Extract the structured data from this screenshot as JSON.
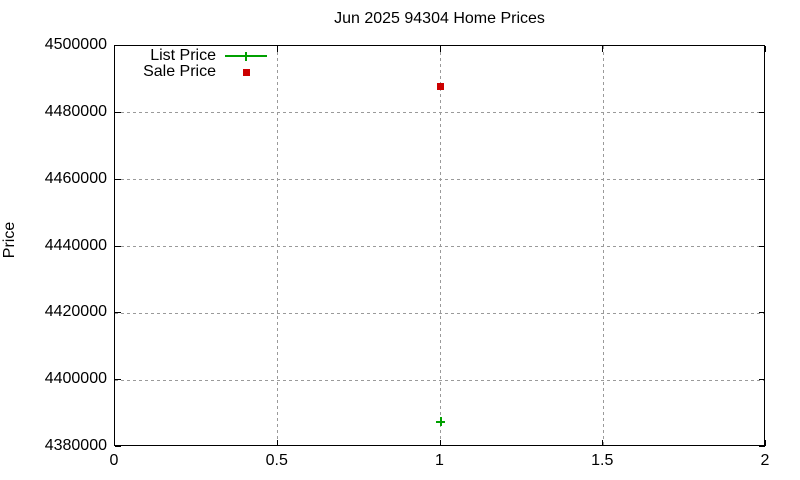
{
  "title": "Jun 2025 94304 Home Prices",
  "chart_data": {
    "type": "scatter",
    "title": "Jun 2025 94304 Home Prices",
    "xlabel": "",
    "ylabel": "Price",
    "xlim": [
      0,
      2
    ],
    "ylim": [
      4380000,
      4500000
    ],
    "x_tick_values": [
      0,
      0.5,
      1,
      1.5,
      2
    ],
    "x_tick_labels": [
      "0",
      "0.5",
      "1",
      "1.5",
      "2"
    ],
    "y_tick_values": [
      4380000,
      4400000,
      4420000,
      4440000,
      4460000,
      4480000,
      4500000
    ],
    "y_tick_labels": [
      "4380000",
      "4400000",
      "4420000",
      "4440000",
      "4460000",
      "4480000",
      "4500000"
    ],
    "grid": true,
    "legend_position": "top-left-inside",
    "series": [
      {
        "name": "List Price",
        "marker": "plus",
        "legend_sample": "line-with-plus",
        "color": "#00a000",
        "points": [
          {
            "x": 1,
            "y": 4387500
          }
        ]
      },
      {
        "name": "Sale Price",
        "marker": "square",
        "legend_sample": "square",
        "color": "#cc0000",
        "points": [
          {
            "x": 1,
            "y": 4488000
          }
        ]
      }
    ],
    "colors": {
      "background": "#ffffff",
      "border": "#000000",
      "grid": "#9a9a9a",
      "text": "#000000"
    }
  }
}
